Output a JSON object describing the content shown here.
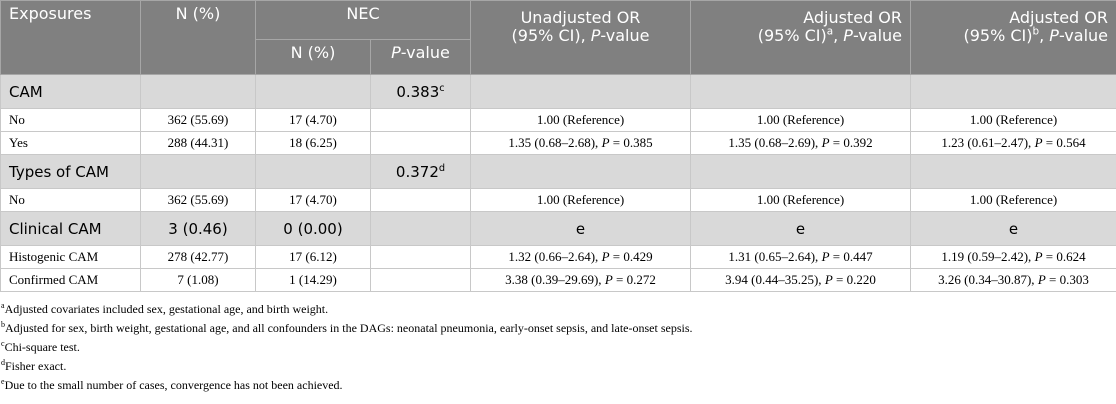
{
  "table": {
    "header": {
      "exposures": "Exposures",
      "n": "N (%)",
      "nec": "NEC",
      "nec_n": "N (%)",
      "nec_p": "P-value",
      "unadj": {
        "line1": "Unadjusted OR",
        "line2": "(95% CI), P-value"
      },
      "adj1": {
        "line1": "Adjusted OR",
        "line2": "(95% CI)",
        "sup": "a",
        "rest": ", P-value"
      },
      "adj2": {
        "line1": "Adjusted OR",
        "line2": "(95% CI)",
        "sup": "b",
        "rest": ", P-value"
      }
    },
    "rows": [
      [
        "CAM",
        null,
        null,
        {
          "text": "0.383",
          "sup": "c"
        },
        null,
        null,
        null
      ],
      [
        "No",
        "362 (55.69)",
        "17 (4.70)",
        null,
        "1.00 (Reference)",
        "1.00 (Reference)",
        "1.00 (Reference)"
      ],
      [
        "Yes",
        "288 (44.31)",
        "18 (6.25)",
        null,
        "1.35 (0.68–2.68), P = 0.385",
        "1.35 (0.68–2.69), P = 0.392",
        "1.23 (0.61–2.47), P = 0.564"
      ],
      [
        "Types of CAM",
        null,
        null,
        {
          "text": "0.372",
          "sup": "d"
        },
        null,
        null,
        null
      ],
      [
        "No",
        "362 (55.69)",
        "17 (4.70)",
        null,
        "1.00 (Reference)",
        "1.00 (Reference)",
        "1.00 (Reference)"
      ],
      [
        "Clinical CAM",
        "3 (0.46)",
        "0 (0.00)",
        null,
        "e",
        "e",
        "e"
      ],
      [
        "Histogenic CAM",
        "278 (42.77)",
        "17 (6.12)",
        null,
        "1.32 (0.66–2.64), P = 0.429",
        "1.31 (0.65–2.64), P = 0.447",
        "1.19 (0.59–2.42), P = 0.624"
      ],
      [
        "Confirmed CAM",
        "7 (1.08)",
        "1 (14.29)",
        null,
        "3.38 (0.39–29.69), P = 0.272",
        "3.94 (0.44–35.25), P = 0.220",
        "3.26 (0.34–30.87), P = 0.303"
      ]
    ]
  },
  "footnotes": [
    {
      "mark": "a",
      "text": "Adjusted covariates included sex, gestational age, and birth weight."
    },
    {
      "mark": "b",
      "text": "Adjusted for sex, birth weight, gestational age, and all confounders in the DAGs: neonatal pneumonia, early-onset sepsis, and late-onset sepsis."
    },
    {
      "mark": "c",
      "text": "Chi-square test."
    },
    {
      "mark": "d",
      "text": "Fisher exact."
    },
    {
      "mark": "e",
      "text": "Due to the small number of cases, convergence has not been achieved."
    }
  ]
}
